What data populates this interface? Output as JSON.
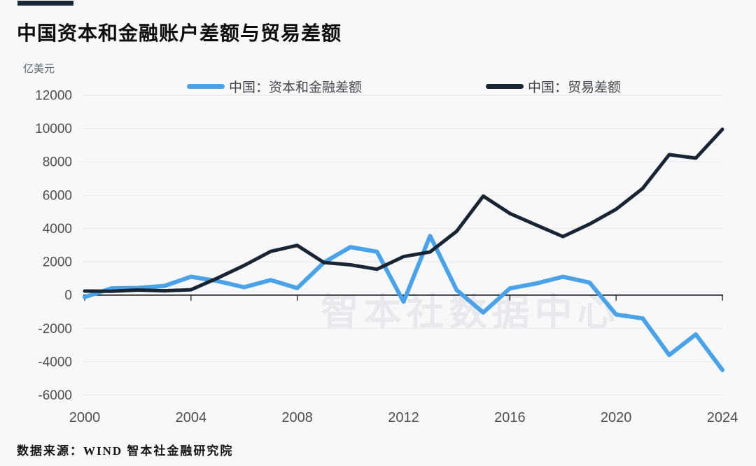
{
  "title": "中国资本和金融账户差额与贸易差额",
  "y_unit_label": "亿美元",
  "watermark": "智本社数据中心",
  "footer": {
    "source_label": "数据来源：WIND 智本社金融研究院"
  },
  "colors": {
    "accent_bar": "#1b2634",
    "capital_series": "#4aa2e8",
    "trade_series": "#1a2533",
    "background": "#f7f8fa"
  },
  "legend": [
    {
      "label": "中国：资本和金融差额"
    },
    {
      "label": "中国：贸易差额"
    }
  ],
  "chart_data": {
    "type": "line",
    "title": "中国资本和金融账户差额与贸易差额",
    "ylabel": "亿美元",
    "ylim": [
      -6000,
      12000
    ],
    "grid": "horizontal",
    "legend_position": "top",
    "x": [
      2000,
      2001,
      2002,
      2003,
      2004,
      2005,
      2006,
      2007,
      2008,
      2009,
      2010,
      2011,
      2012,
      2013,
      2014,
      2015,
      2016,
      2017,
      2018,
      2019,
      2020,
      2021,
      2022,
      2023,
      2024
    ],
    "x_ticks": [
      2000,
      2004,
      2008,
      2012,
      2016,
      2020,
      2024
    ],
    "y_ticks": [
      12000,
      10000,
      8000,
      6000,
      4000,
      2000,
      0,
      -2000,
      -4000,
      -6000
    ],
    "series": [
      {
        "name": "中国：资本和金融差额",
        "color": "#4aa2e8",
        "values": [
          -120,
          400,
          430,
          550,
          1100,
          840,
          470,
          900,
          420,
          1950,
          2880,
          2600,
          -400,
          3550,
          300,
          -1050,
          400,
          700,
          1100,
          750,
          -1170,
          -1400,
          -3600,
          -2360,
          -4500
        ]
      },
      {
        "name": "中国：贸易差额",
        "color": "#1a2533",
        "values": [
          240,
          230,
          300,
          255,
          320,
          1020,
          1775,
          2620,
          2980,
          1955,
          1815,
          1550,
          2310,
          2590,
          3830,
          5940,
          4900,
          4200,
          3510,
          4260,
          5150,
          6400,
          8430,
          8220,
          9950
        ]
      }
    ]
  }
}
